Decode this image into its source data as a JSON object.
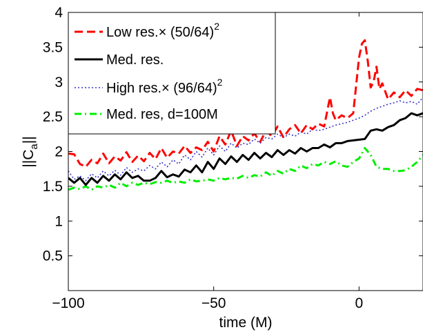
{
  "chart_data": {
    "type": "line",
    "xlabel": "time (M)",
    "ylabel": "||C_a||",
    "ylabel_main": "||C",
    "ylabel_sub": "a",
    "ylabel_tail": "||",
    "xlim": [
      -100,
      22
    ],
    "ylim": [
      0,
      4
    ],
    "xticks": [
      -100,
      -50,
      0
    ],
    "xtick_labels": [
      "−100",
      "−50",
      "0"
    ],
    "yticks": [
      0.5,
      1,
      1.5,
      2,
      2.5,
      3,
      3.5,
      4
    ],
    "ytick_labels": [
      "0.5",
      "1",
      "1.5",
      "2",
      "2.5",
      "3",
      "3.5",
      "4"
    ],
    "grid": false,
    "legend_position": "top-left",
    "series": [
      {
        "name": "Low res.× (50/64)^2",
        "legend_main": "Low res.× (50/64)",
        "legend_sup": "2",
        "color": "#ff0000",
        "style": "dashed",
        "x": [
          -100,
          -98,
          -96,
          -94,
          -92,
          -90,
          -88,
          -86,
          -84,
          -82,
          -80,
          -78,
          -76,
          -74,
          -72,
          -70,
          -68,
          -66,
          -64,
          -62,
          -60,
          -58,
          -56,
          -54,
          -52,
          -50,
          -48,
          -46,
          -44,
          -42,
          -40,
          -38,
          -36,
          -34,
          -32,
          -30,
          -28,
          -26,
          -24,
          -22,
          -20,
          -18,
          -16,
          -14,
          -12,
          -10,
          -9,
          -8,
          -6,
          -4,
          -2,
          0,
          1,
          2,
          3,
          4,
          5,
          6,
          7,
          8,
          10,
          12,
          14,
          16,
          18,
          20,
          22
        ],
        "y": [
          1.97,
          1.96,
          1.82,
          1.78,
          1.88,
          1.83,
          1.97,
          1.83,
          1.93,
          1.87,
          1.99,
          1.85,
          1.94,
          1.86,
          1.98,
          1.89,
          2.05,
          1.91,
          2.0,
          1.97,
          2.08,
          1.98,
          2.06,
          2.02,
          2.14,
          2.0,
          2.22,
          2.1,
          2.3,
          2.08,
          2.22,
          2.16,
          2.26,
          2.14,
          2.3,
          2.22,
          2.36,
          2.2,
          2.32,
          2.38,
          2.26,
          2.38,
          2.32,
          2.4,
          2.36,
          2.78,
          2.55,
          2.45,
          2.52,
          2.48,
          2.55,
          3.35,
          3.55,
          3.6,
          3.3,
          2.92,
          3.0,
          3.22,
          2.9,
          2.98,
          2.75,
          2.85,
          2.78,
          2.88,
          2.8,
          2.9,
          2.88
        ]
      },
      {
        "name": "Med. res.",
        "legend_main": "Med. res.",
        "legend_sup": "",
        "color": "#000000",
        "style": "solid",
        "x": [
          -100,
          -98,
          -96,
          -94,
          -92,
          -90,
          -88,
          -86,
          -84,
          -82,
          -80,
          -78,
          -76,
          -74,
          -72,
          -70,
          -68,
          -66,
          -64,
          -62,
          -60,
          -58,
          -56,
          -54,
          -52,
          -50,
          -48,
          -46,
          -44,
          -42,
          -40,
          -38,
          -36,
          -34,
          -32,
          -30,
          -28,
          -26,
          -24,
          -22,
          -20,
          -18,
          -16,
          -14,
          -12,
          -10,
          -8,
          -6,
          -4,
          -2,
          0,
          2,
          4,
          6,
          8,
          10,
          12,
          14,
          16,
          18,
          20,
          22
        ],
        "y": [
          1.62,
          1.55,
          1.62,
          1.52,
          1.62,
          1.55,
          1.65,
          1.58,
          1.67,
          1.6,
          1.7,
          1.62,
          1.65,
          1.58,
          1.58,
          1.62,
          1.72,
          1.63,
          1.67,
          1.64,
          1.74,
          1.7,
          1.8,
          1.7,
          1.85,
          1.75,
          1.9,
          1.82,
          1.93,
          1.85,
          1.95,
          1.88,
          1.98,
          1.9,
          1.98,
          1.92,
          2.02,
          1.95,
          2.02,
          1.97,
          2.05,
          2.0,
          2.05,
          2.05,
          2.1,
          2.06,
          2.12,
          2.12,
          2.15,
          2.16,
          2.17,
          2.18,
          2.3,
          2.32,
          2.3,
          2.35,
          2.38,
          2.45,
          2.48,
          2.55,
          2.52,
          2.55
        ]
      },
      {
        "name": "High res.× (96/64)^2",
        "legend_main": "High res.× (96/64)",
        "legend_sup": "2",
        "color": "#3333cc",
        "style": "dotted",
        "x": [
          -100,
          -98,
          -96,
          -94,
          -92,
          -90,
          -88,
          -86,
          -84,
          -82,
          -80,
          -78,
          -76,
          -74,
          -72,
          -70,
          -68,
          -66,
          -64,
          -62,
          -60,
          -58,
          -56,
          -54,
          -52,
          -50,
          -48,
          -46,
          -44,
          -42,
          -40,
          -38,
          -36,
          -34,
          -32,
          -30,
          -28,
          -26,
          -24,
          -22,
          -20,
          -18,
          -16,
          -14,
          -12,
          -10,
          -8,
          -6,
          -4,
          -2,
          0,
          2,
          4,
          6,
          8,
          10,
          12,
          14,
          16,
          18,
          20,
          22
        ],
        "y": [
          1.72,
          1.6,
          1.65,
          1.58,
          1.68,
          1.62,
          1.72,
          1.65,
          1.73,
          1.66,
          1.77,
          1.7,
          1.75,
          1.72,
          1.8,
          1.75,
          1.85,
          1.78,
          1.88,
          1.82,
          1.95,
          1.88,
          2.0,
          1.92,
          2.05,
          1.95,
          2.08,
          2.0,
          2.12,
          2.05,
          2.12,
          2.1,
          2.18,
          2.12,
          2.2,
          2.18,
          2.25,
          2.2,
          2.25,
          2.22,
          2.28,
          2.25,
          2.32,
          2.3,
          2.32,
          2.35,
          2.38,
          2.4,
          2.42,
          2.45,
          2.48,
          2.52,
          2.58,
          2.62,
          2.65,
          2.68,
          2.7,
          2.73,
          2.7,
          2.72,
          2.68,
          2.78
        ]
      },
      {
        "name": "Med. res, d=100M",
        "legend_main": "Med. res, d=100M",
        "legend_sup": "",
        "color": "#00ee00",
        "style": "dashdot",
        "x": [
          -100,
          -98,
          -96,
          -94,
          -92,
          -90,
          -88,
          -86,
          -84,
          -82,
          -80,
          -78,
          -76,
          -74,
          -72,
          -70,
          -68,
          -66,
          -64,
          -62,
          -60,
          -58,
          -56,
          -54,
          -52,
          -50,
          -48,
          -46,
          -44,
          -42,
          -40,
          -38,
          -36,
          -34,
          -32,
          -30,
          -28,
          -26,
          -24,
          -22,
          -20,
          -18,
          -16,
          -14,
          -12,
          -10,
          -8,
          -6,
          -4,
          -2,
          0,
          2,
          4,
          6,
          8,
          10,
          12,
          14,
          16,
          18,
          20,
          22
        ],
        "y": [
          1.45,
          1.48,
          1.46,
          1.5,
          1.45,
          1.5,
          1.48,
          1.52,
          1.48,
          1.55,
          1.5,
          1.55,
          1.52,
          1.55,
          1.53,
          1.56,
          1.55,
          1.58,
          1.55,
          1.57,
          1.55,
          1.6,
          1.57,
          1.58,
          1.6,
          1.58,
          1.62,
          1.6,
          1.62,
          1.61,
          1.65,
          1.62,
          1.66,
          1.64,
          1.7,
          1.65,
          1.72,
          1.68,
          1.75,
          1.72,
          1.8,
          1.76,
          1.82,
          1.8,
          1.85,
          1.82,
          1.86,
          1.8,
          1.78,
          1.85,
          1.9,
          2.05,
          1.95,
          1.78,
          1.75,
          1.75,
          1.72,
          1.72,
          1.73,
          1.78,
          1.85,
          1.95
        ]
      }
    ]
  }
}
